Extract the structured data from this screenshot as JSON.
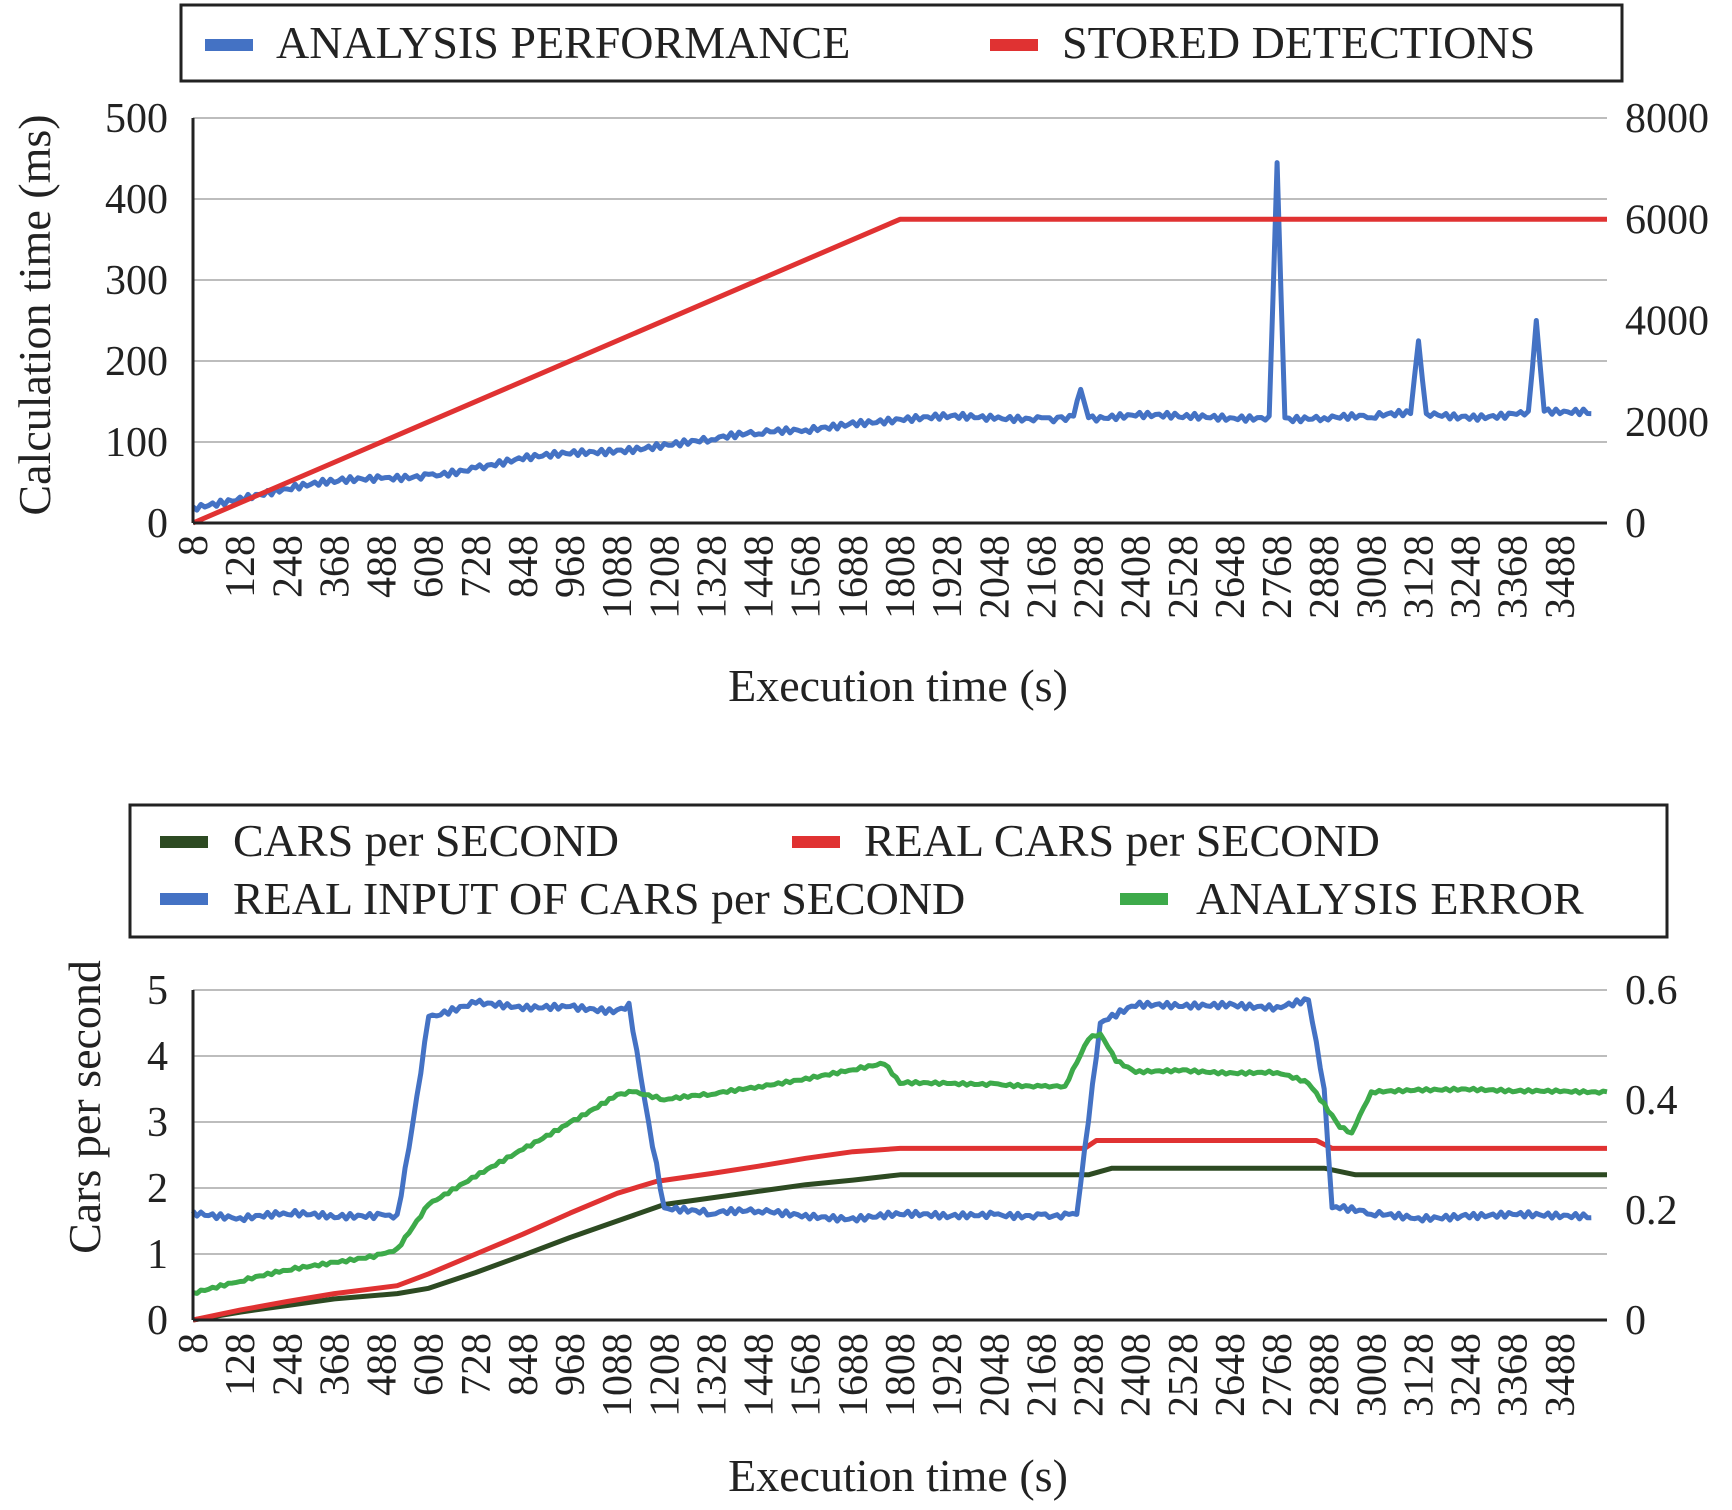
{
  "chart_data": [
    {
      "type": "line",
      "xlabel": "Execution time (s)",
      "ylabel": "Calculation time (ms)",
      "ylim": [
        0,
        500
      ],
      "y2lim": [
        0,
        8000
      ],
      "yticks": [
        "0",
        "100",
        "200",
        "300",
        "400",
        "500"
      ],
      "y2ticks": [
        "0",
        "2000",
        "4000",
        "6000",
        "8000"
      ],
      "categories": [
        "8",
        "128",
        "248",
        "368",
        "488",
        "608",
        "728",
        "848",
        "968",
        "1088",
        "1208",
        "1328",
        "1448",
        "1568",
        "1688",
        "1808",
        "1928",
        "2048",
        "2168",
        "2288",
        "2408",
        "2528",
        "2648",
        "2768",
        "2888",
        "3008",
        "3128",
        "3248",
        "3368",
        "3488"
      ],
      "x_range": [
        8,
        3608
      ],
      "grid": true,
      "legend_position": "top",
      "series": [
        {
          "name": "ANALYSIS PERFORMANCE",
          "axis": "left",
          "color": "#4472c4",
          "x": [
            8,
            128,
            248,
            368,
            488,
            608,
            728,
            848,
            968,
            1088,
            1208,
            1328,
            1448,
            1568,
            1688,
            1808,
            1928,
            2048,
            2168,
            2250,
            2268,
            2288,
            2408,
            2528,
            2648,
            2748,
            2768,
            2788,
            2888,
            3008,
            3108,
            3128,
            3148,
            3248,
            3368,
            3408,
            3428,
            3448,
            3488,
            3568
          ],
          "y": [
            20,
            32,
            42,
            50,
            55,
            60,
            68,
            78,
            85,
            90,
            98,
            103,
            110,
            115,
            125,
            128,
            130,
            128,
            130,
            132,
            165,
            130,
            132,
            130,
            130,
            132,
            445,
            130,
            130,
            130,
            135,
            225,
            135,
            132,
            135,
            138,
            250,
            138,
            135,
            135
          ]
        },
        {
          "name": "STORED DETECTIONS",
          "axis": "right",
          "color": "#e03232",
          "x": [
            8,
            1808,
            3608
          ],
          "y": [
            0,
            6000,
            6000
          ]
        }
      ]
    },
    {
      "type": "line",
      "xlabel": "Execution time (s)",
      "ylabel": "Cars per second",
      "ylim": [
        0,
        5
      ],
      "y2lim": [
        0,
        0.6
      ],
      "yticks": [
        "0",
        "1",
        "2",
        "3",
        "4",
        "5"
      ],
      "y2ticks": [
        "0",
        "0.2",
        "0.4",
        "0.6"
      ],
      "categories": [
        "8",
        "128",
        "248",
        "368",
        "488",
        "608",
        "728",
        "848",
        "968",
        "1088",
        "1208",
        "1328",
        "1448",
        "1568",
        "1688",
        "1808",
        "1928",
        "2048",
        "2168",
        "2288",
        "2408",
        "2528",
        "2648",
        "2768",
        "2888",
        "3008",
        "3128",
        "3248",
        "3368",
        "3488"
      ],
      "x_range": [
        8,
        3608
      ],
      "grid": true,
      "legend_position": "top",
      "series": [
        {
          "name": "CARS per SECOND",
          "axis": "left",
          "color": "#2d4a22",
          "x": [
            8,
            128,
            248,
            368,
            528,
            608,
            728,
            848,
            968,
            1088,
            1208,
            1328,
            1448,
            1568,
            1688,
            1808,
            1928,
            2048,
            2168,
            2288,
            2348,
            2408,
            2528,
            2648,
            2768,
            2888,
            2968,
            3008,
            3128,
            3248,
            3368,
            3488,
            3608
          ],
          "y": [
            0,
            0.12,
            0.22,
            0.32,
            0.4,
            0.48,
            0.72,
            0.98,
            1.25,
            1.5,
            1.75,
            1.85,
            1.95,
            2.05,
            2.12,
            2.2,
            2.2,
            2.2,
            2.2,
            2.2,
            2.3,
            2.3,
            2.3,
            2.3,
            2.3,
            2.3,
            2.2,
            2.2,
            2.2,
            2.2,
            2.2,
            2.2,
            2.2
          ]
        },
        {
          "name": "REAL CARS per SECOND",
          "axis": "left",
          "color": "#e03232",
          "x": [
            8,
            128,
            248,
            368,
            528,
            608,
            728,
            848,
            968,
            1088,
            1188,
            1328,
            1448,
            1568,
            1688,
            1808,
            1928,
            2048,
            2168,
            2278,
            2308,
            2408,
            2528,
            2648,
            2768,
            2868,
            2908,
            3008,
            3128,
            3248,
            3368,
            3488,
            3608
          ],
          "y": [
            0,
            0.15,
            0.28,
            0.4,
            0.52,
            0.7,
            1.0,
            1.3,
            1.62,
            1.92,
            2.1,
            2.22,
            2.33,
            2.45,
            2.55,
            2.6,
            2.6,
            2.6,
            2.6,
            2.6,
            2.72,
            2.72,
            2.72,
            2.72,
            2.72,
            2.72,
            2.6,
            2.6,
            2.6,
            2.6,
            2.6,
            2.6,
            2.6
          ]
        },
        {
          "name": "REAL INPUT OF CARS per SECOND",
          "axis": "left",
          "color": "#4472c4",
          "x": [
            8,
            128,
            248,
            368,
            488,
            528,
            568,
            608,
            728,
            848,
            968,
            1088,
            1118,
            1168,
            1208,
            1328,
            1448,
            1568,
            1688,
            1808,
            1928,
            2048,
            2168,
            2238,
            2258,
            2318,
            2408,
            2528,
            2648,
            2768,
            2848,
            2888,
            2908,
            3008,
            3128,
            3248,
            3368,
            3488,
            3568
          ],
          "y": [
            1.65,
            1.55,
            1.6,
            1.55,
            1.6,
            1.6,
            3.0,
            4.6,
            4.8,
            4.7,
            4.75,
            4.7,
            4.8,
            3.0,
            1.7,
            1.6,
            1.65,
            1.6,
            1.55,
            1.6,
            1.55,
            1.6,
            1.6,
            1.6,
            1.6,
            4.5,
            4.75,
            4.75,
            4.8,
            4.75,
            4.85,
            3.5,
            1.7,
            1.6,
            1.55,
            1.6,
            1.6,
            1.55,
            1.55
          ]
        },
        {
          "name": "ANALYSIS ERROR",
          "axis": "right",
          "color": "#3daa4a",
          "x": [
            8,
            128,
            248,
            368,
            488,
            528,
            608,
            728,
            848,
            968,
            1088,
            1128,
            1208,
            1328,
            1448,
            1568,
            1688,
            1768,
            1808,
            1928,
            2048,
            2168,
            2228,
            2288,
            2318,
            2358,
            2408,
            2528,
            2648,
            2768,
            2848,
            2928,
            2958,
            3008,
            3128,
            3248,
            3368,
            3488,
            3608
          ],
          "y": [
            0.05,
            0.07,
            0.09,
            0.105,
            0.12,
            0.13,
            0.21,
            0.26,
            0.31,
            0.36,
            0.41,
            0.415,
            0.4,
            0.41,
            0.425,
            0.44,
            0.455,
            0.465,
            0.43,
            0.43,
            0.43,
            0.425,
            0.425,
            0.51,
            0.52,
            0.47,
            0.45,
            0.455,
            0.45,
            0.45,
            0.43,
            0.35,
            0.34,
            0.415,
            0.42,
            0.42,
            0.415,
            0.415,
            0.415
          ]
        }
      ]
    }
  ]
}
